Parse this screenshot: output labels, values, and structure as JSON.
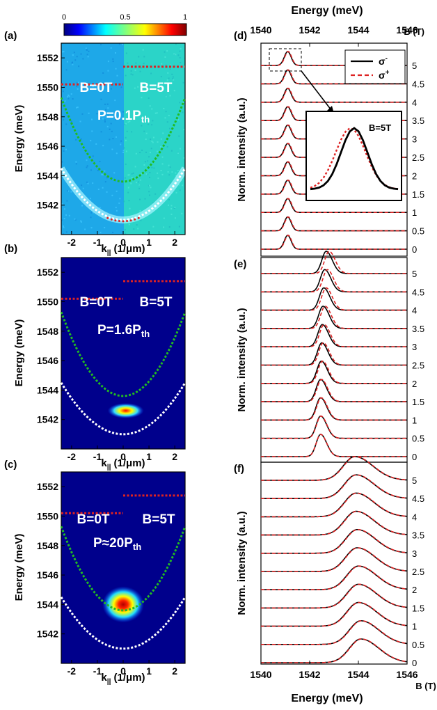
{
  "figure": {
    "top_axis_title": "Energy (meV)",
    "bottom_axis_title": "Energy (meV)",
    "b_axis_top_label": "B (T)",
    "b_axis_bottom_label": "B (T)"
  },
  "colorbar": {
    "ticks": [
      "0",
      "0.5",
      "1"
    ],
    "colormap": "jet"
  },
  "chart_data": [
    {
      "id": "a",
      "type": "heatmap",
      "panel_label": "(a)",
      "xlabel": "k|| (1/μm)",
      "xlabel_main": "k",
      "xlabel_sub": "||",
      "xlabel_rest": " (1/μm)",
      "ylabel": "Energy (meV)",
      "xlim": [
        -2.4,
        2.4
      ],
      "ylim": [
        1540,
        1553
      ],
      "xticks": [
        "-2",
        "-1",
        "0",
        "1",
        "2"
      ],
      "yticks": [
        "1542",
        "1544",
        "1546",
        "1548",
        "1550",
        "1552"
      ],
      "left_field": "B=0T",
      "right_field": "B=5T",
      "pump_main": "P=0.1P",
      "pump_sub": "th",
      "pump": "P=0.1Pth",
      "upper_polariton": {
        "color": "#22bb22",
        "k0_energy_meV": 1543.6,
        "edge_energy_meV": 1549.3
      },
      "lower_polariton": {
        "color": "#ffffff",
        "k0_energy_meV": 1541.0,
        "edge_energy_meV": 1544.5
      },
      "exciton_level_meV": {
        "B=0T": 1550.2,
        "B=5T": 1551.4
      },
      "emission": "distributed along lower polariton branch"
    },
    {
      "id": "b",
      "type": "heatmap",
      "panel_label": "(b)",
      "xlabel": "k|| (1/μm)",
      "xlabel_main": "k",
      "xlabel_sub": "||",
      "xlabel_rest": " (1/μm)",
      "ylabel": "Energy (meV)",
      "xlim": [
        -2.4,
        2.4
      ],
      "ylim": [
        1540,
        1553
      ],
      "xticks": [
        "-2",
        "-1",
        "0",
        "1",
        "2"
      ],
      "yticks": [
        "1542",
        "1544",
        "1546",
        "1548",
        "1550",
        "1552"
      ],
      "left_field": "B=0T",
      "right_field": "B=5T",
      "pump_main": "P=1.6P",
      "pump_sub": "th",
      "pump": "P=1.6Pth",
      "emission_peak": {
        "k": 0.1,
        "energy_meV": 1542.6
      },
      "exciton_level_meV": {
        "B=0T": 1550.2,
        "B=5T": 1551.4
      }
    },
    {
      "id": "c",
      "type": "heatmap",
      "panel_label": "(c)",
      "xlabel": "k|| (1/μm)",
      "xlabel_main": "k",
      "xlabel_sub": "||",
      "xlabel_rest": " (1/μm)",
      "ylabel": "Energy (meV)",
      "xlim": [
        -2.4,
        2.4
      ],
      "ylim": [
        1540,
        1553
      ],
      "xticks": [
        "-2",
        "-1",
        "0",
        "1",
        "2"
      ],
      "yticks": [
        "1542",
        "1544",
        "1546",
        "1548",
        "1550",
        "1552"
      ],
      "left_field": "B=0T",
      "right_field": "B=5T",
      "pump_main": "P≈20P",
      "pump_sub": "th",
      "pump": "P≈20Pth",
      "emission_peak": {
        "k": 0.0,
        "energy_meV": 1544.0
      },
      "exciton_level_meV": {
        "B=0T": 1550.2,
        "B=5T": 1551.4
      }
    },
    {
      "id": "d",
      "type": "line",
      "panel_label": "(d)",
      "ylabel": "Norm. intensity (a.u.)",
      "xlim": [
        1540,
        1546
      ],
      "xticks": [
        "1540",
        "1542",
        "1544",
        "1546"
      ],
      "b_values": [
        "0",
        "0.5",
        "1",
        "1.5",
        "2",
        "2.5",
        "3",
        "3.5",
        "4",
        "4.5",
        "5"
      ],
      "series": [
        {
          "name": "σ-",
          "name_main": "σ",
          "name_sup": "-",
          "color": "#000000",
          "dash": "solid"
        },
        {
          "name": "σ+",
          "name_main": "σ",
          "name_sup": "+",
          "color": "#dd2222",
          "dash": "dashed"
        }
      ],
      "peak_energy_meV": [
        1541.1,
        1541.1,
        1541.1,
        1541.1,
        1541.1,
        1541.1,
        1541.1,
        1541.1,
        1541.1,
        1541.1,
        1541.1
      ],
      "peak_width_meV": 0.14,
      "inset_label": "B=5T"
    },
    {
      "id": "e",
      "type": "line",
      "panel_label": "(e)",
      "ylabel": "Norm. intensity (a.u.)",
      "xlim": [
        1540,
        1546
      ],
      "b_values": [
        "0",
        "0.5",
        "1",
        "1.5",
        "2",
        "2.5",
        "3",
        "3.5",
        "4",
        "4.5",
        "5"
      ],
      "peak_energy_meV": [
        1542.45,
        1542.45,
        1542.45,
        1542.45,
        1542.48,
        1542.5,
        1542.52,
        1542.55,
        1542.58,
        1542.62,
        1542.68
      ],
      "peak_width_meV": 0.2
    },
    {
      "id": "f",
      "type": "line",
      "panel_label": "(f)",
      "ylabel": "Norm. intensity (a.u.)",
      "xlim": [
        1540,
        1546
      ],
      "xticks": [
        "1540",
        "1542",
        "1544",
        "1546"
      ],
      "b_values": [
        "0",
        "0.5",
        "1",
        "1.5",
        "2",
        "2.5",
        "3",
        "3.5",
        "4",
        "4.5",
        "5"
      ],
      "peak_energy_meV": [
        1544.1,
        1544.1,
        1544.0,
        1544.0,
        1544.0,
        1543.95,
        1543.95,
        1543.9,
        1543.9,
        1543.9,
        1543.85
      ],
      "peak_width_meV": 0.55
    }
  ]
}
